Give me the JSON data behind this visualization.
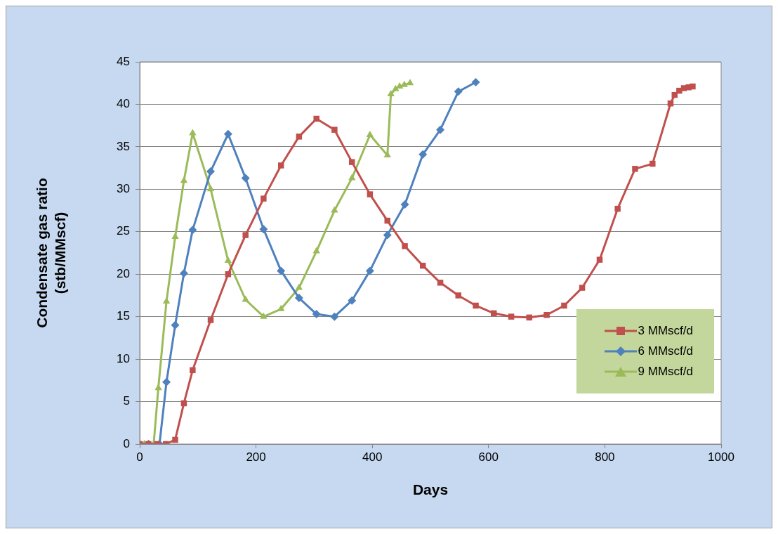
{
  "chart_data": {
    "type": "line",
    "xlabel": "Days",
    "ylabel": "Condensate gas ratio\n(stb/MMscf)",
    "xlim": [
      0,
      1000
    ],
    "xticks": [
      0,
      200,
      400,
      600,
      800,
      1000
    ],
    "ylim": [
      0,
      45
    ],
    "yticks": [
      0,
      5,
      10,
      15,
      20,
      25,
      30,
      35,
      40,
      45
    ],
    "grid": "y",
    "legend": "bottom right",
    "series": [
      {
        "name": "3 MMscf/d",
        "color": "#c0504d",
        "marker": "square",
        "x": [
          0,
          15,
          30,
          45,
          61,
          76,
          91,
          122,
          152,
          182,
          213,
          243,
          274,
          304,
          335,
          365,
          396,
          426,
          456,
          487,
          517,
          548,
          578,
          609,
          639,
          670,
          700,
          730,
          761,
          791,
          822,
          852,
          882,
          913,
          920,
          928,
          936,
          944,
          951
        ],
        "values": [
          0,
          0,
          0,
          0,
          0.5,
          4.8,
          8.7,
          14.6,
          20,
          24.6,
          28.9,
          32.8,
          36.2,
          38.3,
          37,
          33.2,
          29.4,
          26.3,
          23.3,
          21,
          19,
          17.5,
          16.3,
          15.4,
          15,
          14.9,
          15.2,
          16.3,
          18.4,
          21.7,
          27.7,
          32.4,
          33,
          40.1,
          41.1,
          41.6,
          41.9,
          42,
          42.1
        ]
      },
      {
        "name": "6 MMscf/d",
        "color": "#4f81bd",
        "marker": "diamond",
        "x": [
          0,
          15,
          34,
          46,
          61,
          76,
          91,
          122,
          152,
          182,
          213,
          243,
          274,
          304,
          335,
          365,
          396,
          426,
          456,
          487,
          517,
          548,
          578
        ],
        "values": [
          0,
          0,
          0,
          7.3,
          14,
          20.1,
          25.2,
          32.1,
          36.5,
          31.3,
          25.3,
          20.4,
          17.2,
          15.3,
          15,
          16.9,
          20.4,
          24.6,
          28.2,
          34.1,
          37,
          41.5,
          42.6
        ]
      },
      {
        "name": "9 MMscf/d",
        "color": "#9bbb59",
        "marker": "triangle",
        "x": [
          0,
          8,
          16,
          24,
          32,
          46,
          61,
          76,
          91,
          122,
          152,
          182,
          213,
          243,
          274,
          304,
          335,
          365,
          396,
          426,
          432,
          440,
          447,
          455,
          465
        ],
        "values": [
          0,
          0,
          0,
          0,
          6.6,
          16.8,
          24.4,
          31,
          36.6,
          30,
          21.6,
          17,
          15,
          15.9,
          18.4,
          22.7,
          27.5,
          31.3,
          36.4,
          34,
          41.2,
          41.8,
          42.1,
          42.3,
          42.5
        ]
      }
    ]
  }
}
